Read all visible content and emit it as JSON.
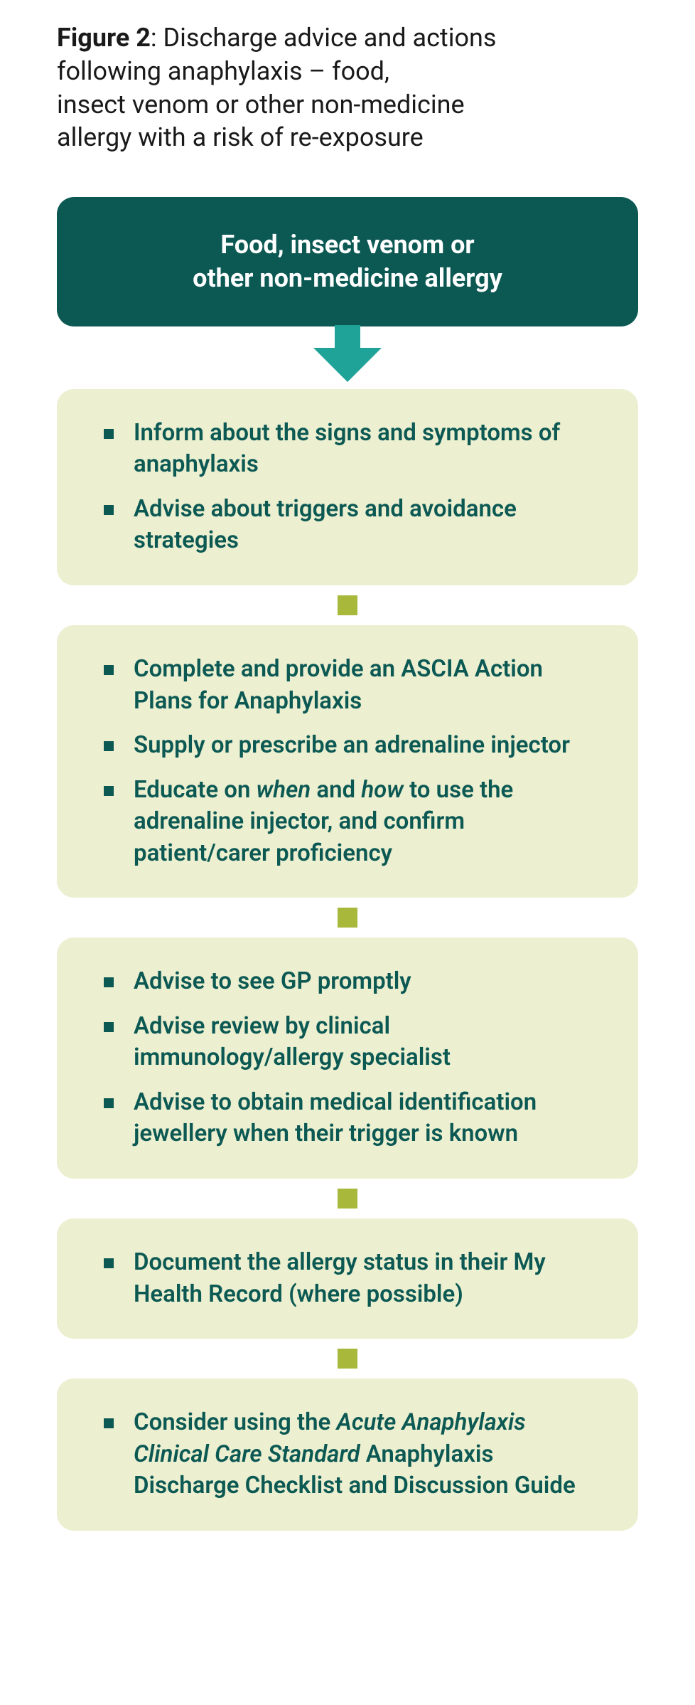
{
  "colors": {
    "header_bg": "#0c5954",
    "header_text": "#ffffff",
    "arrow_fill": "#1fa298",
    "box_bg": "#ecefd0",
    "text_teal": "#0c5954",
    "bullet": "#0c5954",
    "connector": "#a7b83a",
    "title_color": "#1a1a1a"
  },
  "title": {
    "label": "Figure 2",
    "text_line1": ": Discharge advice and actions",
    "text_line2": "following anaphylaxis – food,",
    "text_line3": "insect venom or other non-medicine",
    "text_line4": "allergy with a risk of re-exposure"
  },
  "header": {
    "line1": "Food, insect venom or",
    "line2": "other non-medicine allergy"
  },
  "steps": [
    {
      "items": [
        {
          "text": "Inform about the signs and symptoms of anaphylaxis"
        },
        {
          "text": "Advise about triggers and avoidance strategies"
        }
      ]
    },
    {
      "items": [
        {
          "text": "Complete and provide an ASCIA Action Plans for Anaphylaxis"
        },
        {
          "text": "Supply or prescribe an adrenaline injector"
        },
        {
          "html": "Educate on <span class=\"italic\">when</span> and <span class=\"italic\">how</span> to use the adrenaline injector, and confirm patient/carer proficiency"
        }
      ]
    },
    {
      "items": [
        {
          "text": "Advise to see GP promptly"
        },
        {
          "text": "Advise review by clinical immunology/allergy specialist"
        },
        {
          "text": "Advise to obtain medical identification jewellery when their trigger is known"
        }
      ]
    },
    {
      "items": [
        {
          "text": "Document the allergy status in their My Health Record (where possible)"
        }
      ]
    },
    {
      "items": [
        {
          "html": "Consider using the <span class=\"italic\">Acute Anaphylaxis Clinical Care Standard</span> Anaphylaxis Discharge Checklist and Discussion Guide"
        }
      ]
    }
  ]
}
